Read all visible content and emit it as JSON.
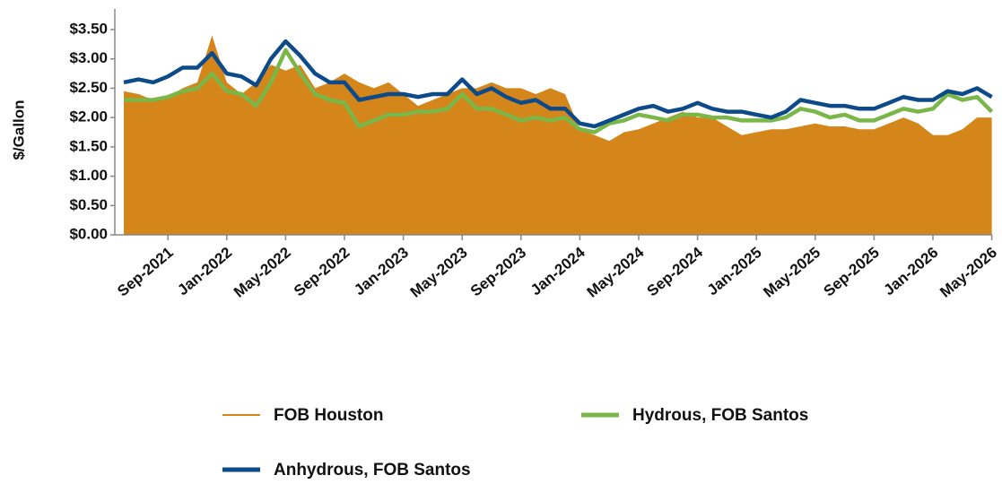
{
  "chart_data": {
    "type": "line",
    "y_label": "$/Gallon",
    "categories": [
      "Jun-2021",
      "Jul-2021",
      "Aug-2021",
      "Sep-2021",
      "Oct-2021",
      "Nov-2021",
      "Dec-2021",
      "Jan-2022",
      "Feb-2022",
      "Mar-2022",
      "Apr-2022",
      "May-2022",
      "Jun-2022",
      "Jul-2022",
      "Aug-2022",
      "Sep-2022",
      "Oct-2022",
      "Nov-2022",
      "Dec-2022",
      "Jan-2023",
      "Feb-2023",
      "Mar-2023",
      "Apr-2023",
      "May-2023",
      "Jun-2023",
      "Jul-2023",
      "Aug-2023",
      "Sep-2023",
      "Oct-2023",
      "Nov-2023",
      "Dec-2023",
      "Jan-2024",
      "Feb-2024",
      "Mar-2024",
      "Apr-2024",
      "May-2024",
      "Jun-2024",
      "Jul-2024",
      "Aug-2024",
      "Sep-2024",
      "Oct-2024",
      "Nov-2024",
      "Dec-2024",
      "Jan-2025",
      "Feb-2025",
      "Mar-2025",
      "Apr-2025",
      "May-2025",
      "Jun-2025",
      "Jul-2025",
      "Aug-2025",
      "Sep-2025",
      "Oct-2025",
      "Nov-2025",
      "Dec-2025",
      "Jan-2026",
      "Feb-2026",
      "Mar-2026",
      "Apr-2026",
      "May-2026"
    ],
    "xticks": [
      "Sep-2021",
      "Jan-2022",
      "May-2022",
      "Sep-2022",
      "Jan-2023",
      "May-2023",
      "Sep-2023",
      "Jan-2024",
      "May-2024",
      "Sep-2024",
      "Jan-2025",
      "May-2025",
      "Sep-2025",
      "Jan-2026",
      "May-2026"
    ],
    "ylim": [
      0,
      3.5
    ],
    "yticks": [
      {
        "value": 0,
        "label": "$0.00"
      },
      {
        "value": 0.5,
        "label": "$0.50"
      },
      {
        "value": 1,
        "label": "$1.00"
      },
      {
        "value": 1.5,
        "label": "$1.50"
      },
      {
        "value": 2,
        "label": "$2.00"
      },
      {
        "value": 2.5,
        "label": "$2.50"
      },
      {
        "value": 3,
        "label": "$3.00"
      },
      {
        "value": 3.5,
        "label": "$3.50"
      }
    ],
    "series": [
      {
        "name": "FOB Houston",
        "color": "#d4861a",
        "fill": true,
        "values": [
          2.45,
          2.4,
          2.3,
          2.35,
          2.5,
          2.6,
          3.4,
          2.6,
          2.4,
          2.6,
          2.9,
          2.8,
          2.9,
          2.5,
          2.6,
          2.75,
          2.6,
          2.5,
          2.6,
          2.4,
          2.2,
          2.3,
          2.4,
          2.5,
          2.5,
          2.6,
          2.5,
          2.5,
          2.4,
          2.5,
          2.4,
          1.8,
          1.7,
          1.6,
          1.75,
          1.8,
          1.9,
          2.0,
          2.1,
          2.0,
          2.0,
          1.85,
          1.7,
          1.75,
          1.8,
          1.8,
          1.85,
          1.9,
          1.85,
          1.85,
          1.8,
          1.8,
          1.9,
          2.0,
          1.9,
          1.7,
          1.7,
          1.8,
          2.0,
          2.0
        ]
      },
      {
        "name": "Hydrous, FOB Santos",
        "color": "#7ab648",
        "fill": false,
        "values": [
          2.3,
          2.3,
          2.3,
          2.35,
          2.45,
          2.5,
          2.75,
          2.45,
          2.4,
          2.2,
          2.6,
          3.15,
          2.75,
          2.4,
          2.3,
          2.25,
          1.85,
          1.95,
          2.05,
          2.05,
          2.1,
          2.1,
          2.15,
          2.4,
          2.15,
          2.15,
          2.05,
          1.95,
          2.0,
          1.95,
          2.0,
          1.8,
          1.75,
          1.9,
          1.95,
          2.05,
          2.0,
          1.95,
          2.05,
          2.05,
          2.0,
          2.0,
          1.95,
          1.95,
          1.95,
          2.0,
          2.15,
          2.1,
          2.0,
          2.05,
          1.95,
          1.95,
          2.05,
          2.15,
          2.1,
          2.15,
          2.4,
          2.3,
          2.35,
          2.1
        ]
      },
      {
        "name": "Anhydrous, FOB Santos",
        "color": "#0d4a8a",
        "fill": false,
        "values": [
          2.6,
          2.65,
          2.6,
          2.7,
          2.85,
          2.85,
          3.1,
          2.75,
          2.7,
          2.55,
          3.0,
          3.3,
          3.05,
          2.75,
          2.6,
          2.6,
          2.3,
          2.35,
          2.4,
          2.4,
          2.35,
          2.4,
          2.4,
          2.65,
          2.4,
          2.5,
          2.35,
          2.25,
          2.3,
          2.15,
          2.15,
          1.9,
          1.85,
          1.95,
          2.05,
          2.15,
          2.2,
          2.1,
          2.15,
          2.25,
          2.15,
          2.1,
          2.1,
          2.05,
          2.0,
          2.1,
          2.3,
          2.25,
          2.2,
          2.2,
          2.15,
          2.15,
          2.25,
          2.35,
          2.3,
          2.3,
          2.45,
          2.4,
          2.5,
          2.35
        ]
      }
    ]
  }
}
